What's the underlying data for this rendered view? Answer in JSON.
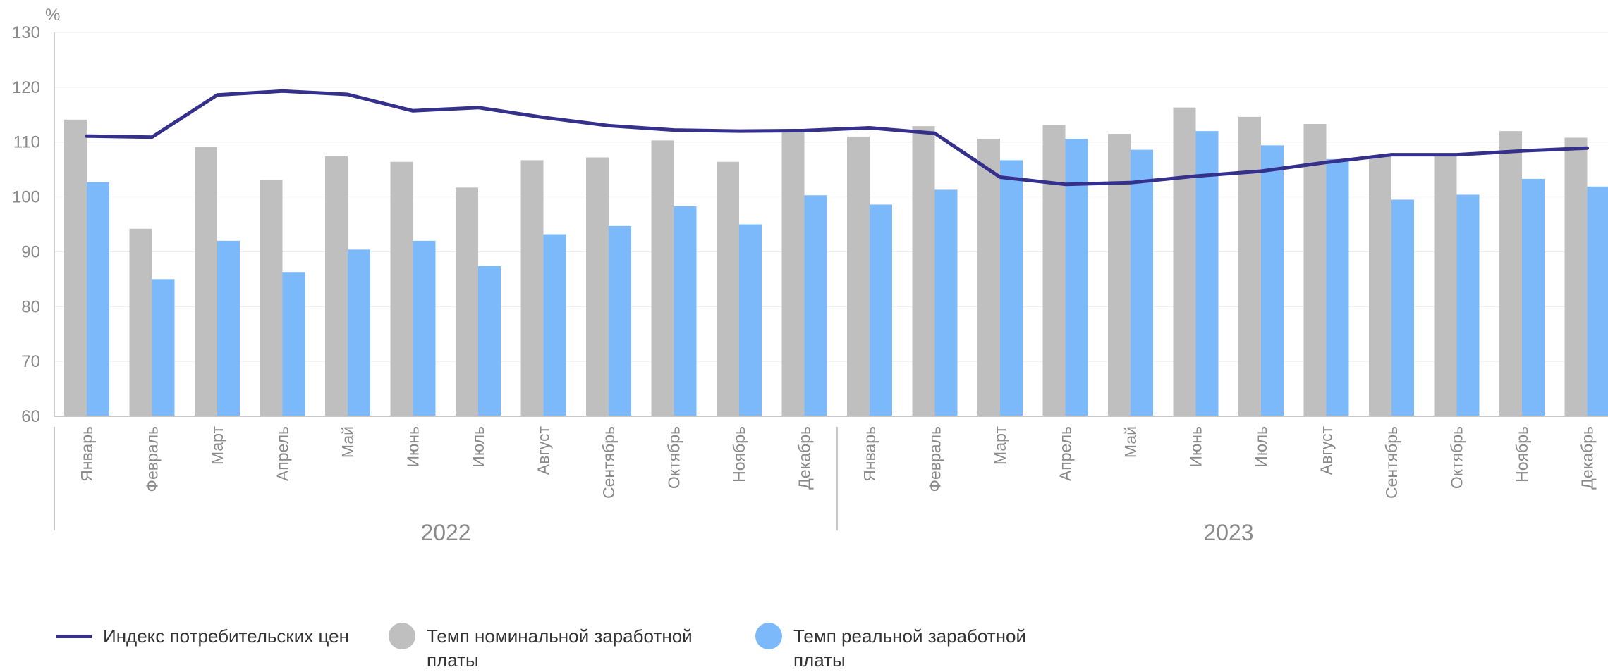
{
  "chart_data": {
    "type": "bar",
    "unit_label": "%",
    "ylim": [
      60,
      130
    ],
    "yticks": [
      60,
      70,
      80,
      90,
      100,
      110,
      120,
      130
    ],
    "grid": true,
    "legend_position": "bottom-left",
    "groups": [
      {
        "label": "2022",
        "categories": [
          "Январь",
          "Февраль",
          "Март",
          "Апрель",
          "Май",
          "Июнь",
          "Июль",
          "Август",
          "Сентябрь",
          "Октябрь",
          "Ноябрь",
          "Декабрь"
        ]
      },
      {
        "label": "2023",
        "categories": [
          "Январь",
          "Февраль",
          "Март",
          "Апрель",
          "Май",
          "Июнь",
          "Июль",
          "Август",
          "Сентябрь",
          "Октябрь",
          "Ноябрь",
          "Декабрь"
        ]
      }
    ],
    "series": [
      {
        "name": "Индекс потребительских цен",
        "type": "line",
        "color": "#35308c",
        "values": [
          111.1,
          110.9,
          118.6,
          119.3,
          118.7,
          115.7,
          116.3,
          114.5,
          113.0,
          112.2,
          112.0,
          112.1,
          112.6,
          111.6,
          103.6,
          102.3,
          102.6,
          103.8,
          104.7,
          106.3,
          107.7,
          107.7,
          108.4,
          108.9
        ]
      },
      {
        "name": "Темп номинальной заработной платы",
        "type": "bar",
        "color": "#bfbfbf",
        "values": [
          114.1,
          94.2,
          109.1,
          103.1,
          107.4,
          106.4,
          101.7,
          106.7,
          107.2,
          110.3,
          106.4,
          112.1,
          111.0,
          112.9,
          110.6,
          113.1,
          111.5,
          116.3,
          114.6,
          113.3,
          107.4,
          107.4,
          112.0,
          110.8
        ]
      },
      {
        "name": "Темп реальной заработной платы",
        "type": "bar",
        "color": "#7cb9fa",
        "values": [
          102.7,
          85.0,
          92.0,
          86.3,
          90.4,
          92.0,
          87.4,
          93.2,
          94.7,
          98.3,
          95.0,
          100.3,
          98.6,
          101.3,
          106.7,
          110.6,
          108.6,
          112.0,
          109.4,
          106.9,
          99.5,
          100.4,
          103.3,
          101.9
        ]
      }
    ]
  },
  "legend": {
    "items": [
      {
        "label": "Индекс потребительских цен",
        "shape": "line",
        "color": "#35308c"
      },
      {
        "label": "Темп номинальной заработной платы",
        "shape": "circle",
        "color": "#bfbfbf"
      },
      {
        "label": "Темп реальной заработной платы",
        "shape": "circle",
        "color": "#7cb9fa"
      }
    ]
  }
}
